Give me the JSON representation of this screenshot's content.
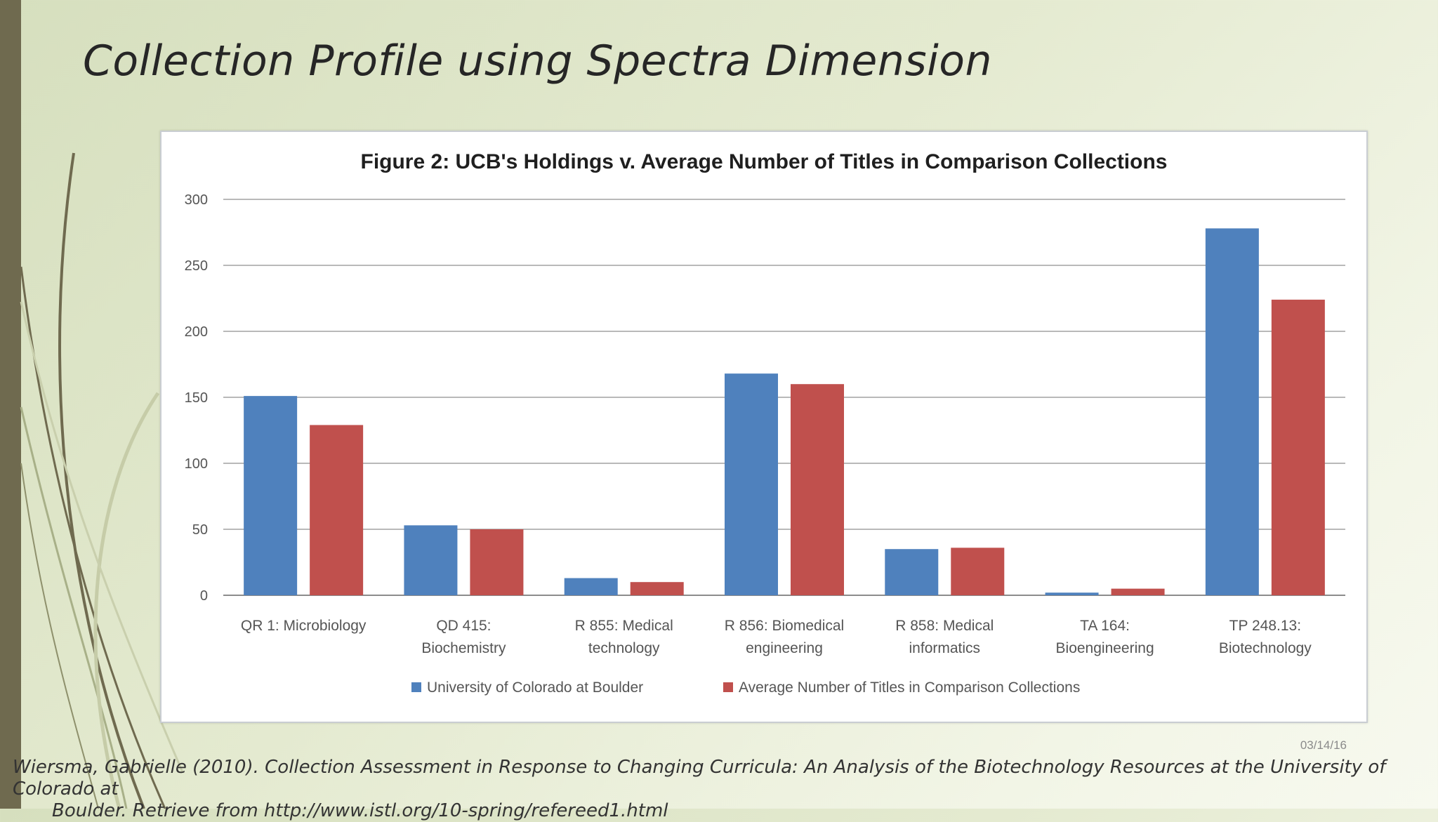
{
  "slide": {
    "title": "Collection Profile using Spectra Dimension",
    "date": "03/14/16",
    "citation_line1": "Wiersma, Gabrielle (2010). Collection Assessment in Response to Changing Curricula: An Analysis of the Biotechnology Resources at the University of Colorado at",
    "citation_line2": "Boulder. Retrieve from http://www.istl.org/10-spring/refereed1.html"
  },
  "colors": {
    "series1": "#4f81bd",
    "series2": "#c0504d",
    "grid": "#b9b9b9",
    "left_bar": "#6f6a4f"
  },
  "chart_data": {
    "type": "bar",
    "title": "Figure 2: UCB's Holdings v. Average Number of Titles in Comparison Collections",
    "xlabel": "",
    "ylabel": "",
    "ylim": [
      0,
      300
    ],
    "yticks": [
      0,
      50,
      100,
      150,
      200,
      250,
      300
    ],
    "grid": true,
    "legend_position": "bottom",
    "categories": [
      [
        "QR 1: Microbiology"
      ],
      [
        "QD 415:",
        "Biochemistry"
      ],
      [
        "R 855: Medical",
        "technology"
      ],
      [
        "R 856: Biomedical",
        "engineering"
      ],
      [
        "R 858: Medical",
        "informatics"
      ],
      [
        "TA 164:",
        "Bioengineering"
      ],
      [
        "TP 248.13:",
        "Biotechnology"
      ]
    ],
    "series": [
      {
        "name": "University of Colorado at Boulder",
        "values": [
          151,
          53,
          13,
          168,
          35,
          2,
          278
        ]
      },
      {
        "name": "Average Number of Titles in Comparison Collections",
        "values": [
          129,
          50,
          10,
          160,
          36,
          5,
          224
        ]
      }
    ]
  }
}
